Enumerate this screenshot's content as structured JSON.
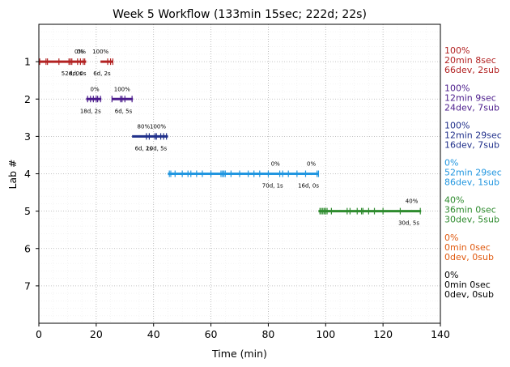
{
  "chart_data": {
    "type": "timeline",
    "title": "Week 5 Workflow (133min 15sec; 222d; 22s)",
    "xlabel": "Time (min)",
    "ylabel": "Lab #",
    "xlim": [
      0,
      140
    ],
    "ylim": [
      8,
      0
    ],
    "xticks": [
      "0",
      "20",
      "40",
      "60",
      "80",
      "100",
      "120",
      "140"
    ],
    "yticks": [
      "1",
      "2",
      "3",
      "4",
      "5",
      "6",
      "7"
    ],
    "grid": true,
    "labs": [
      {
        "lab": 1,
        "color": "#b22222",
        "summary": [
          "100%",
          "20min 8sec",
          "66dev, 2sub"
        ],
        "segments": [
          [
            0,
            16.5
          ],
          [
            21.5,
            25.8
          ]
        ],
        "ticks": [
          0.3,
          2.5,
          3,
          7,
          10.5,
          11,
          11.5,
          13.5,
          14.5,
          15.5,
          16,
          24,
          25,
          25.8
        ],
        "percent_labels": [
          {
            "x": 14,
            "text": "0%"
          },
          {
            "x": 14.8,
            "text": "0%"
          },
          {
            "x": 21.5,
            "text": "100%"
          }
        ],
        "count_labels": [
          {
            "x": 11.5,
            "text": "52d, 0s"
          },
          {
            "x": 13.5,
            "text": "8d, 0s"
          },
          {
            "x": 22,
            "text": "6d, 2s"
          }
        ]
      },
      {
        "lab": 2,
        "color": "#4b1c8c",
        "summary": [
          "100%",
          "12min 9sec",
          "24dev, 7sub"
        ],
        "segments": [
          [
            16.5,
            21.8
          ],
          [
            25.5,
            32.8
          ]
        ],
        "ticks": [
          17,
          18,
          19,
          20,
          20.5,
          21.5,
          25.5,
          28.5,
          29,
          30,
          32.5
        ],
        "percent_labels": [
          {
            "x": 19.5,
            "text": "0%"
          },
          {
            "x": 29,
            "text": "100%"
          }
        ],
        "count_labels": [
          {
            "x": 18,
            "text": "18d, 2s"
          },
          {
            "x": 29.5,
            "text": "6d, 5s"
          }
        ]
      },
      {
        "lab": 3,
        "color": "#1f2f8a",
        "summary": [
          "100%",
          "12min 29sec",
          "16dev, 7sub"
        ],
        "segments": [
          [
            32.5,
            45
          ]
        ],
        "ticks": [
          37.5,
          38.5,
          40.5,
          41,
          42.5,
          43.5,
          44.5
        ],
        "percent_labels": [
          {
            "x": 36.5,
            "text": "80%"
          },
          {
            "x": 41.5,
            "text": "100%"
          }
        ],
        "count_labels": [
          {
            "x": 36.5,
            "text": "6d, 2s"
          },
          {
            "x": 41,
            "text": "10d, 5s"
          }
        ]
      },
      {
        "lab": 4,
        "color": "#2196e0",
        "summary": [
          "0%",
          "52min 29sec",
          "86dev, 1sub"
        ],
        "segments": [
          [
            45,
            97.5
          ]
        ],
        "ticks": [
          45.5,
          46,
          47.5,
          50,
          52,
          53,
          55,
          57,
          60,
          63.5,
          64,
          64.5,
          65,
          67,
          70,
          73,
          75,
          77,
          80,
          84,
          85,
          87,
          90,
          93,
          97,
          97.5
        ],
        "percent_labels": [
          {
            "x": 82.5,
            "text": "0%"
          },
          {
            "x": 95,
            "text": "0%"
          }
        ],
        "count_labels": [
          {
            "x": 81.5,
            "text": "70d, 1s"
          },
          {
            "x": 94,
            "text": "16d, 0s"
          }
        ]
      },
      {
        "lab": 5,
        "color": "#2e8b2e",
        "summary": [
          "40%",
          "36min 0sec",
          "30dev, 5sub"
        ],
        "segments": [
          [
            97.5,
            133.3
          ]
        ],
        "ticks": [
          98,
          98.5,
          99,
          99.5,
          100,
          100.5,
          102,
          107.5,
          108.5,
          111,
          112.5,
          113,
          115,
          117,
          120,
          126,
          133
        ],
        "percent_labels": [
          {
            "x": 130,
            "text": "40%"
          }
        ],
        "count_labels": [
          {
            "x": 129,
            "text": "30d, 5s"
          }
        ]
      },
      {
        "lab": 6,
        "color": "#e05a10",
        "summary": [
          "0%",
          "0min 0sec",
          "0dev, 0sub"
        ],
        "segments": [],
        "ticks": [],
        "percent_labels": [],
        "count_labels": []
      },
      {
        "lab": 7,
        "color": "#000000",
        "summary": [
          "0%",
          "0min 0sec",
          "0dev, 0sub"
        ],
        "segments": [],
        "ticks": [],
        "percent_labels": [],
        "count_labels": []
      }
    ]
  }
}
